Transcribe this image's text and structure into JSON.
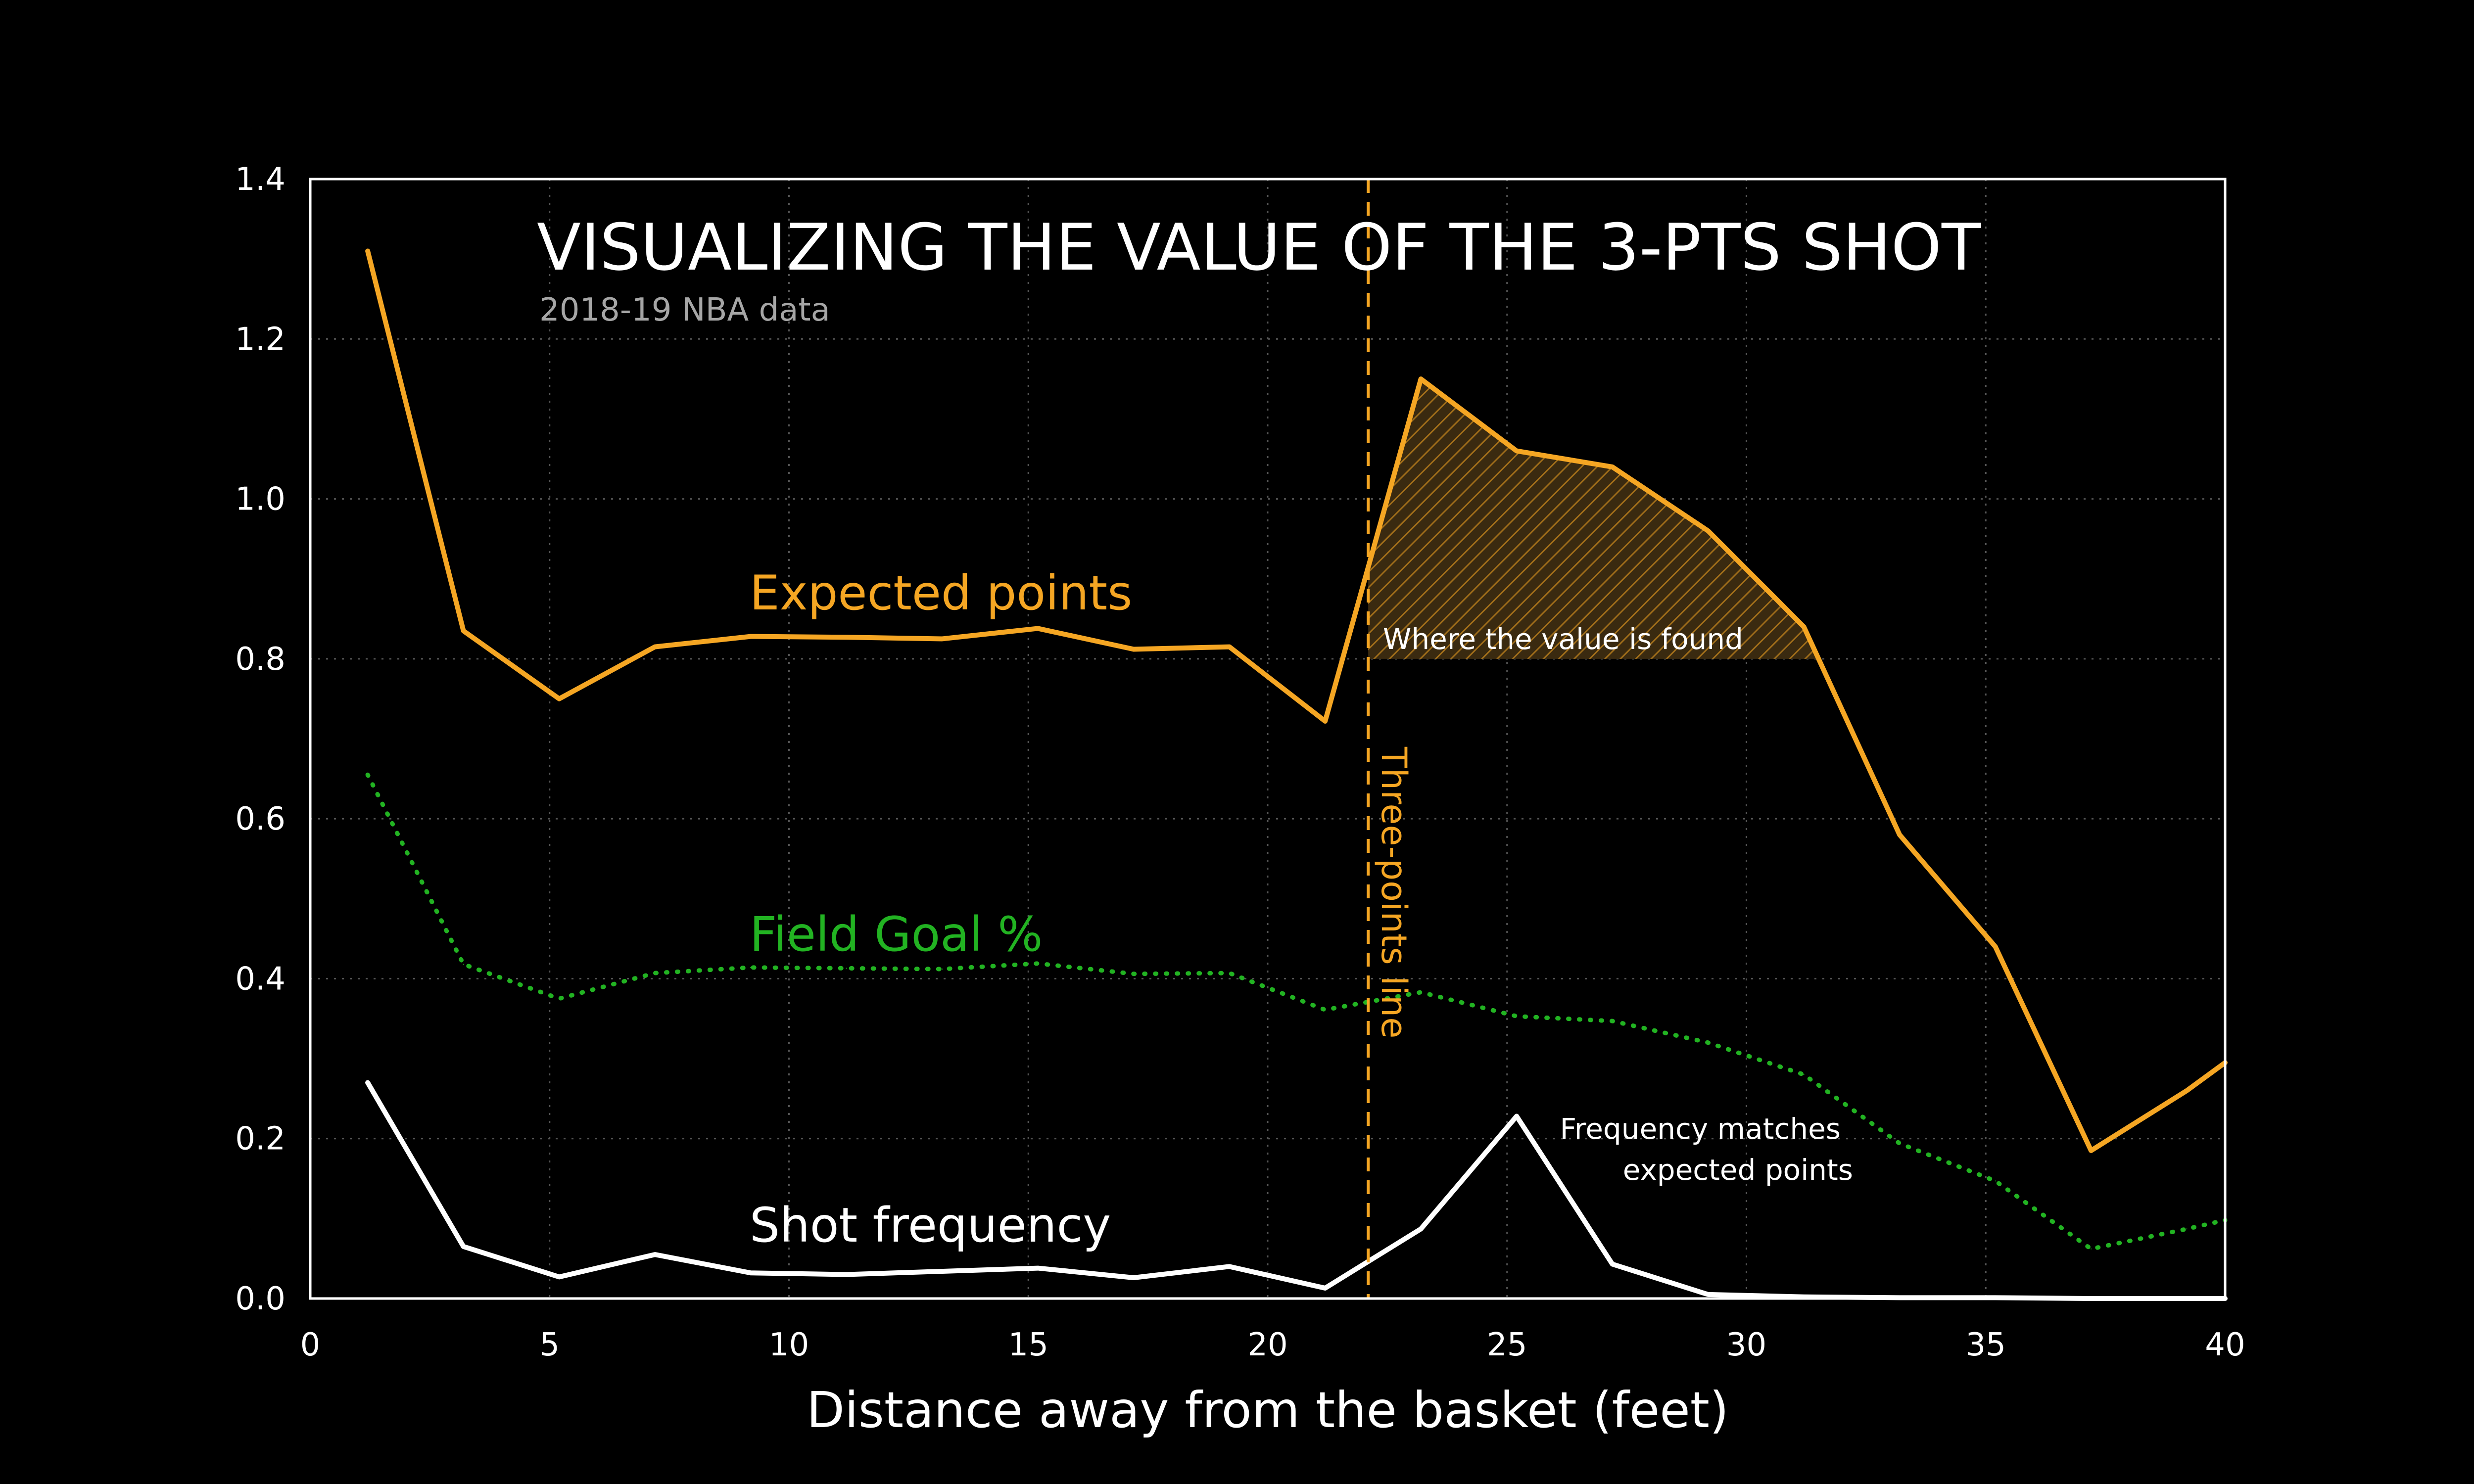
{
  "chart_data": {
    "type": "line",
    "title": "VISUALIZING THE VALUE OF THE 3-PTS SHOT",
    "subtitle": "2018-19 NBA data",
    "xlabel": "Distance away from the basket (feet)",
    "ylabel": "",
    "xlim": [
      0,
      40
    ],
    "ylim": [
      0,
      1.4
    ],
    "x_ticks": [
      "0",
      "5",
      "10",
      "15",
      "20",
      "25",
      "30",
      "35",
      "40"
    ],
    "y_ticks": [
      "0.0",
      "0.2",
      "0.4",
      "0.6",
      "0.8",
      "1.0",
      "1.2",
      "1.4"
    ],
    "grid": true,
    "x": [
      1.2,
      3.2,
      5.2,
      7.2,
      9.2,
      11.2,
      13.2,
      15.2,
      17.2,
      19.2,
      21.2,
      23.2,
      25.2,
      27.2,
      29.2,
      31.2,
      33.2,
      35.2,
      37.2,
      39.2,
      40
    ],
    "series": [
      {
        "name": "Expected points",
        "color": "#f5a623",
        "style": "solid",
        "values": [
          1.31,
          0.835,
          0.75,
          0.815,
          0.828,
          0.827,
          0.825,
          0.838,
          0.812,
          0.815,
          0.722,
          1.15,
          1.06,
          1.04,
          0.96,
          0.84,
          0.58,
          0.44,
          0.185,
          0.26,
          0.295
        ]
      },
      {
        "name": "Field Goal %",
        "color": "#22b322",
        "style": "dotted",
        "values": [
          0.655,
          0.418,
          0.375,
          0.407,
          0.414,
          0.413,
          0.412,
          0.419,
          0.406,
          0.407,
          0.361,
          0.383,
          0.353,
          0.347,
          0.32,
          0.28,
          0.194,
          0.147,
          0.062,
          0.087,
          0.098
        ]
      },
      {
        "name": "Shot frequency",
        "color": "#ffffff",
        "style": "solid",
        "values": [
          0.27,
          0.065,
          0.027,
          0.055,
          0.032,
          0.03,
          0.034,
          0.038,
          0.026,
          0.04,
          0.013,
          0.087,
          0.228,
          0.043,
          0.005,
          0.002,
          0.001,
          0.001,
          0.0,
          0.0,
          0.0
        ]
      }
    ],
    "three_point_line": {
      "x": 22.1,
      "label": "Three-points line",
      "color": "#f5a623"
    },
    "value_region": {
      "from_x": 22.1,
      "baseline": 0.8,
      "label": "Where the value is found"
    },
    "annotations": {
      "frequency_line1": "Frequency matches",
      "frequency_line2": "expected points"
    }
  }
}
